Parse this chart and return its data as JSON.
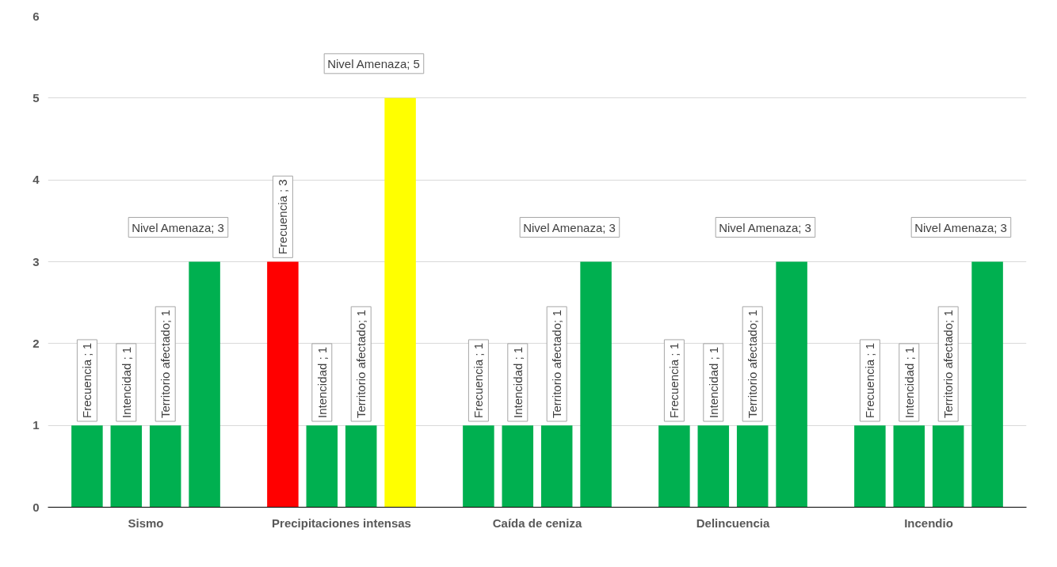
{
  "chart_data": {
    "type": "bar",
    "categories": [
      "Sismo",
      "Precipitaciones intensas",
      "Caída de ceniza",
      "Delincuencia",
      "Incendio"
    ],
    "series": [
      {
        "name": "Frecuencia",
        "colors": [
          "#00b050",
          "#ff0000",
          "#00b050",
          "#00b050",
          "#00b050"
        ],
        "values": [
          1,
          3,
          1,
          1,
          1
        ],
        "value_labels": [
          " ; 1",
          " ; 3",
          " ; 1",
          " ; 1",
          " ; 1"
        ]
      },
      {
        "name": "Intencidad",
        "colors": [
          "#00b050",
          "#00b050",
          "#00b050",
          "#00b050",
          "#00b050"
        ],
        "values": [
          1,
          1,
          1,
          1,
          1
        ],
        "value_labels": [
          " ; 1",
          " ; 1",
          " ; 1",
          " ; 1",
          " ; 1"
        ]
      },
      {
        "name": "Territorio afectado",
        "colors": [
          "#00b050",
          "#00b050",
          "#00b050",
          "#00b050",
          "#00b050"
        ],
        "values": [
          1,
          1,
          1,
          1,
          1
        ],
        "value_labels": [
          "; 1",
          "; 1",
          "; 1",
          "; 1",
          "; 1"
        ]
      },
      {
        "name": "Nivel Amenaza",
        "colors": [
          "#00b050",
          "#ffff00",
          "#00b050",
          "#00b050",
          "#00b050"
        ],
        "values": [
          3,
          5,
          3,
          3,
          3
        ],
        "value_labels": [
          "; 3",
          "; 5",
          "; 3",
          "; 3",
          "; 3"
        ]
      }
    ],
    "ylim": [
      0,
      6
    ],
    "yticks": [
      0,
      1,
      2,
      3,
      4,
      5,
      6
    ],
    "grid": "y"
  }
}
